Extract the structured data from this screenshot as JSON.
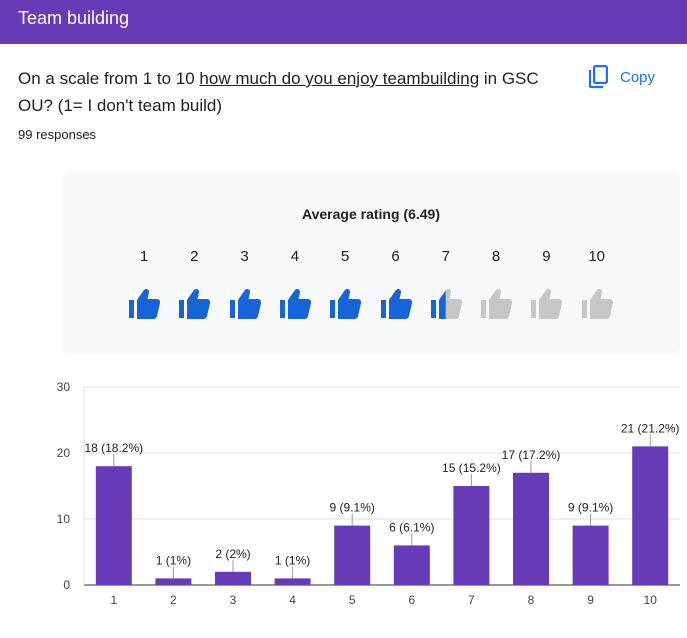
{
  "header": {
    "title": "Team building"
  },
  "question": {
    "prefix": "On a scale from 1 to 10 ",
    "underlined": "how much do you enjoy teambuilding",
    "suffix": " in GSC OU? (1= I don't team build)"
  },
  "copy_button": {
    "label": "Copy",
    "icon": "copy-icon"
  },
  "responses": {
    "count_text": "99 responses"
  },
  "rating": {
    "title": "Average rating (6.49)",
    "average": 6.49,
    "scale": [
      "1",
      "2",
      "3",
      "4",
      "5",
      "6",
      "7",
      "8",
      "9",
      "10"
    ],
    "icon": "thumb-up-icon",
    "filled_color": "#1565d8",
    "empty_color": "#c6c6c6"
  },
  "chart_data": {
    "type": "bar",
    "categories": [
      "1",
      "2",
      "3",
      "4",
      "5",
      "6",
      "7",
      "8",
      "9",
      "10"
    ],
    "values": [
      18,
      1,
      2,
      1,
      9,
      6,
      15,
      17,
      9,
      21
    ],
    "labels": [
      "18 (18.2%)",
      "1 (1%)",
      "2 (2%)",
      "1 (1%)",
      "9 (9.1%)",
      "6 (6.1%)",
      "15 (15.2%)",
      "17 (17.2%)",
      "9 (9.1%)",
      "21 (21.2%)"
    ],
    "y_ticks": [
      "0",
      "10",
      "20",
      "30"
    ],
    "ylim": [
      0,
      30
    ],
    "title": "",
    "xlabel": "",
    "ylabel": "",
    "bar_color": "#673ab7",
    "grid": true
  }
}
